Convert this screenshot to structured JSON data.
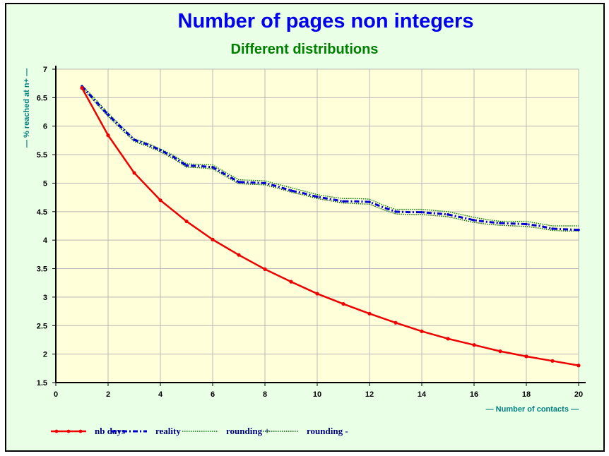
{
  "chart_data": {
    "type": "line",
    "title": "Number of pages non integers",
    "subtitle": "Different distributions",
    "xlabel": "— Number of contacts —",
    "ylabel": "— % reached at n+ —",
    "xlim": [
      0,
      20
    ],
    "ylim": [
      1.5,
      7
    ],
    "xticks": [
      "0",
      "2",
      "4",
      "6",
      "8",
      "10",
      "12",
      "14",
      "16",
      "18",
      "20"
    ],
    "yticks": [
      "1.5",
      "2",
      "2.5",
      "3",
      "3.5",
      "4",
      "4.5",
      "5",
      "5.5",
      "6",
      "6.5",
      "7"
    ],
    "grid": true,
    "legend_position": "bottom-left",
    "series": [
      {
        "name": "nb days",
        "color": "#ee0000",
        "style": "solid-dots",
        "x": [
          1,
          2,
          3,
          4,
          5,
          6,
          7,
          8,
          9,
          10,
          11,
          12,
          13,
          14,
          15,
          16,
          17,
          18,
          19,
          20
        ],
        "y": [
          6.67,
          5.84,
          5.18,
          4.7,
          4.33,
          4.01,
          3.74,
          3.49,
          3.27,
          3.06,
          2.88,
          2.71,
          2.55,
          2.4,
          2.27,
          2.16,
          2.05,
          1.96,
          1.88,
          1.8
        ]
      },
      {
        "name": "reality",
        "color": "#0000cc",
        "style": "dash-dot",
        "x": [
          1,
          1.5,
          2,
          2.5,
          3,
          3.5,
          4,
          4.5,
          5,
          5.5,
          6,
          6.5,
          7,
          7.5,
          8,
          8.5,
          9,
          9.5,
          10,
          10.5,
          11,
          11.5,
          12,
          12.5,
          13,
          13.5,
          14,
          14.5,
          15,
          15.5,
          16,
          16.5,
          17,
          17.5,
          18,
          18.5,
          19,
          19.5,
          20
        ],
        "y": [
          6.7,
          6.45,
          6.2,
          5.98,
          5.76,
          5.68,
          5.58,
          5.46,
          5.31,
          5.3,
          5.28,
          5.15,
          5.02,
          5.01,
          5.0,
          4.94,
          4.87,
          4.82,
          4.76,
          4.72,
          4.68,
          4.68,
          4.67,
          4.58,
          4.5,
          4.49,
          4.49,
          4.47,
          4.45,
          4.4,
          4.35,
          4.32,
          4.3,
          4.29,
          4.28,
          4.25,
          4.2,
          4.19,
          4.18
        ]
      },
      {
        "name": "rounding +",
        "color": "#008000",
        "style": "dotted",
        "x": [
          1,
          1.5,
          2,
          2.5,
          3,
          3.5,
          4,
          4.5,
          5,
          5.5,
          6,
          6.5,
          7,
          7.5,
          8,
          8.5,
          9,
          9.5,
          10,
          10.5,
          11,
          11.5,
          12,
          12.5,
          13,
          13.5,
          14,
          14.5,
          15,
          15.5,
          16,
          16.5,
          17,
          17.5,
          18,
          18.5,
          19,
          19.5,
          20
        ],
        "y": [
          6.72,
          6.48,
          6.23,
          6.0,
          5.78,
          5.7,
          5.6,
          5.49,
          5.34,
          5.33,
          5.32,
          5.19,
          5.06,
          5.05,
          5.04,
          4.98,
          4.92,
          4.86,
          4.8,
          4.76,
          4.73,
          4.73,
          4.72,
          4.62,
          4.54,
          4.54,
          4.54,
          4.52,
          4.5,
          4.45,
          4.4,
          4.36,
          4.33,
          4.33,
          4.33,
          4.29,
          4.25,
          4.25,
          4.25
        ]
      },
      {
        "name": "rounding -",
        "color": "#006000",
        "style": "dotted",
        "x": [
          1,
          1.5,
          2,
          2.5,
          3,
          3.5,
          4,
          4.5,
          5,
          5.5,
          6,
          6.5,
          7,
          7.5,
          8,
          8.5,
          9,
          9.5,
          10,
          10.5,
          11,
          11.5,
          12,
          12.5,
          13,
          13.5,
          14,
          14.5,
          15,
          15.5,
          16,
          16.5,
          17,
          17.5,
          18,
          18.5,
          19,
          19.5,
          20
        ],
        "y": [
          6.68,
          6.42,
          6.17,
          5.95,
          5.73,
          5.65,
          5.55,
          5.43,
          5.28,
          5.27,
          5.25,
          5.12,
          4.99,
          4.98,
          4.97,
          4.91,
          4.84,
          4.79,
          4.73,
          4.69,
          4.65,
          4.64,
          4.63,
          4.54,
          4.46,
          4.45,
          4.45,
          4.43,
          4.41,
          4.36,
          4.31,
          4.28,
          4.26,
          4.25,
          4.24,
          4.21,
          4.17,
          4.16,
          4.16
        ]
      }
    ]
  },
  "colors": {
    "frame_background": "#e9ffe6",
    "plot_background": "#ffffd9",
    "grid": "#b8b8b8",
    "title": "#0000ee",
    "subtitle": "#008000",
    "axis_label": "#008080"
  }
}
